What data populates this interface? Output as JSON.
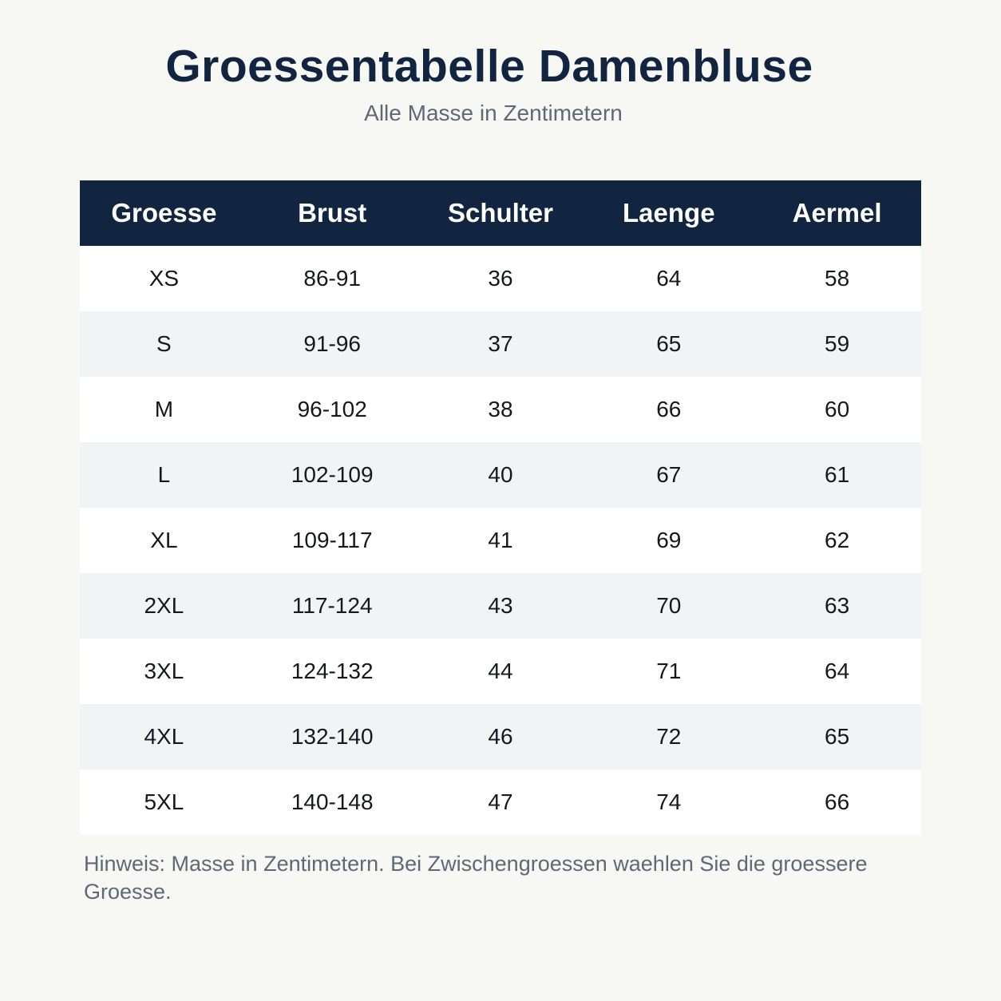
{
  "header": {
    "title": "Groessentabelle Damenbluse",
    "subtitle": "Alle Masse in Zentimetern"
  },
  "table": {
    "columns": [
      "Groesse",
      "Brust",
      "Schulter",
      "Laenge",
      "Aermel"
    ],
    "rows": [
      [
        "XS",
        "86-91",
        "36",
        "64",
        "58"
      ],
      [
        "S",
        "91-96",
        "37",
        "65",
        "59"
      ],
      [
        "M",
        "96-102",
        "38",
        "66",
        "60"
      ],
      [
        "L",
        "102-109",
        "40",
        "67",
        "61"
      ],
      [
        "XL",
        "109-117",
        "41",
        "69",
        "62"
      ],
      [
        "2XL",
        "117-124",
        "43",
        "70",
        "63"
      ],
      [
        "3XL",
        "124-132",
        "44",
        "71",
        "64"
      ],
      [
        "4XL",
        "132-140",
        "46",
        "72",
        "65"
      ],
      [
        "5XL",
        "140-148",
        "47",
        "74",
        "66"
      ]
    ]
  },
  "footer": {
    "note": "Hinweis: Masse in Zentimetern. Bei Zwischengroessen waehlen Sie die groessere Groesse."
  },
  "colors": {
    "header_bg": "#112541",
    "page_bg": "#f7f8f4",
    "row_alt_bg": "#f2f3f5"
  }
}
